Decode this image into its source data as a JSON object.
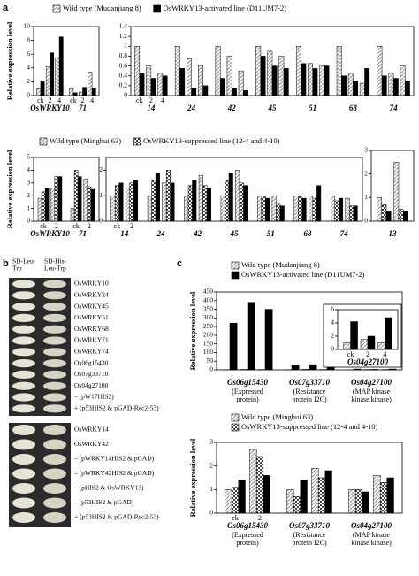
{
  "panel_labels": [
    "a",
    "b",
    "c"
  ],
  "yeast": {
    "headers": [
      [
        "SD-Leu-",
        "Trp"
      ],
      [
        "SD-His-",
        "Leu-Trp"
      ]
    ],
    "top": [
      "OsWRKY10",
      "OsWRKY24",
      "OsWRKY45",
      "OsWRKY51",
      "OsWRKY68",
      "OsWRKY71",
      "OsWRKY74",
      "Os06g15430",
      "Os07g33710",
      "Os04g27100",
      "– (pW17HIS2)",
      "+ (p53HIS2 & pGAD-Rec2-53)"
    ],
    "bottom": [
      "OsWRKY14",
      "OsWRKY42",
      "– (pWRKY14HIS2 & pGAD)",
      "– (pWRKY42HIS2 & pGAD)",
      "– (pHIS2 & OsWRKY13)",
      "– (p53HIS2 & pGAD)",
      "+ (p53HIS2 & pGAD-Rec2-53)"
    ]
  },
  "chart_data": [
    {
      "type": "bar",
      "ylabel": "Relative expression level",
      "genes": [
        "OsWRKY10",
        "71"
      ],
      "categories": [
        "ck",
        "2",
        "4",
        "ck",
        "2",
        "4"
      ],
      "ylim": [
        0,
        10
      ],
      "yticks": [
        0,
        2,
        4,
        6,
        8,
        10
      ],
      "series": [
        {
          "name": "Wild type (Mudanjiang 8)",
          "color": "#9a9a9a",
          "pattern": "hatch",
          "values": [
            1,
            4.2,
            5.5,
            1,
            0.5,
            3.4
          ]
        },
        {
          "name": "OsWRKY13-activated line (D11UM7-2)",
          "color": "#000000",
          "pattern": "solid",
          "values": [
            2,
            6.2,
            8.5,
            0.4,
            1.2,
            1
          ]
        }
      ]
    },
    {
      "type": "bar",
      "genes": [
        "14",
        "24",
        "42",
        "45",
        "51",
        "68",
        "74"
      ],
      "categories": [
        "ck",
        "2",
        "4",
        null,
        null,
        null,
        null,
        null,
        null,
        null,
        null,
        null,
        null,
        null,
        null,
        null,
        null,
        null,
        null,
        null,
        null
      ],
      "ylim": [
        0,
        1.4
      ],
      "yticks": [
        0,
        0.2,
        0.4,
        0.6,
        0.8,
        1,
        1.2,
        1.4
      ],
      "series": [
        {
          "color": "#9a9a9a",
          "pattern": "hatch",
          "values": [
            1.0,
            0.6,
            0.45,
            1.0,
            0.75,
            0.6,
            1.0,
            0.8,
            0.5,
            1.0,
            0.9,
            0.8,
            1.0,
            0.65,
            0.6,
            1.0,
            0.45,
            0.25,
            1.0,
            0.45,
            0.6
          ]
        },
        {
          "color": "#000000",
          "pattern": "solid",
          "values": [
            0.45,
            0.35,
            0.4,
            0.55,
            0.15,
            0.2,
            0.35,
            0.15,
            0.1,
            0.8,
            0.6,
            0.55,
            0.65,
            0.55,
            0.6,
            0.4,
            0.3,
            0.55,
            0.4,
            0.35,
            0.3
          ]
        }
      ]
    },
    {
      "type": "bar",
      "ylabel": "Relative expression level",
      "genes": [
        "OsWRKY10",
        "71"
      ],
      "categories": [
        "ck",
        "2",
        "ck",
        "2"
      ],
      "ylim": [
        0,
        5
      ],
      "yticks": [
        0,
        1,
        2,
        3,
        4,
        5
      ],
      "series": [
        {
          "name": "Wild type (Minghui 63)",
          "color": "#9a9a9a",
          "pattern": "hatch",
          "values": [
            1.8,
            2.6,
            1,
            3.3
          ]
        },
        {
          "name": "OsWRKY13-suppressed line (12-4 and 4-10)",
          "color": "#444444",
          "pattern": "check",
          "values": [
            2.3,
            3.5,
            4,
            2.7
          ]
        },
        {
          "color": "#000000",
          "pattern": "solid",
          "values": [
            2.6,
            3.5,
            3.5,
            2.5
          ]
        }
      ]
    },
    {
      "type": "bar",
      "genes": [
        "14",
        "24",
        "42",
        "45",
        "51",
        "68",
        "74"
      ],
      "categories": [
        "ck",
        "2",
        null,
        null,
        null,
        null,
        null,
        null,
        null,
        null,
        null,
        null,
        null,
        null
      ],
      "ylim": [
        0,
        2.5
      ],
      "yticks": [
        0,
        1,
        2
      ],
      "series": [
        {
          "color": "#9a9a9a",
          "pattern": "hatch",
          "values": [
            1.0,
            1.3,
            1.0,
            1.5,
            1.0,
            1.8,
            1.0,
            2.0,
            1.0,
            1.0,
            1.0,
            1.0,
            1.0,
            0.9
          ]
        },
        {
          "color": "#444444",
          "pattern": "check",
          "values": [
            1.4,
            1.5,
            1.6,
            2.0,
            1.4,
            1.4,
            1.6,
            1.5,
            1.0,
            0.7,
            1.0,
            0.9,
            0.8,
            0.6
          ]
        },
        {
          "color": "#000000",
          "pattern": "solid",
          "values": [
            1.5,
            1.6,
            1.9,
            1.5,
            1.6,
            1.3,
            1.9,
            1.4,
            0.9,
            0.6,
            0.9,
            1.4,
            0.9,
            0.6
          ]
        }
      ]
    },
    {
      "type": "bar",
      "genes": [
        "13"
      ],
      "categories": [
        null,
        null
      ],
      "ylim": [
        0,
        3
      ],
      "yticks": [
        0,
        1,
        2,
        3
      ],
      "series": [
        {
          "color": "#9a9a9a",
          "pattern": "hatch",
          "values": [
            1,
            2.5
          ]
        },
        {
          "color": "#444444",
          "pattern": "check",
          "values": [
            0.7,
            0.5
          ]
        },
        {
          "color": "#000000",
          "pattern": "solid",
          "values": [
            0.4,
            0.4
          ]
        }
      ]
    },
    {
      "type": "bar",
      "ylabel": "Relative expression level",
      "genes": [
        "Os06g15430",
        "Os07g33710",
        "Os04g27100"
      ],
      "gene_notes": [
        [
          "(Expressed",
          "protein)"
        ],
        [
          "(Resistance",
          "protein I2C)"
        ],
        [
          "(MAP kinase",
          "kinase kinase)"
        ]
      ],
      "categories": [
        null,
        null,
        null,
        null,
        null,
        null,
        null,
        null,
        null
      ],
      "ylim": [
        0,
        450
      ],
      "yticks": [
        0,
        50,
        100,
        150,
        200,
        250,
        300,
        350,
        400,
        450
      ],
      "series": [
        {
          "name": "Wild type (Mudanjiang 8)",
          "color": "#9a9a9a",
          "pattern": "hatch",
          "values": [
            1,
            2.4,
            2,
            1,
            3,
            2,
            1,
            2,
            2
          ]
        },
        {
          "name": "OsWRKY13-activated line (D11UM7-2)",
          "color": "#000000",
          "pattern": "solid",
          "values": [
            270,
            390,
            350,
            25,
            30,
            35,
            5,
            3,
            5
          ]
        }
      ]
    },
    {
      "type": "bar",
      "genes": [
        "Os04g27100"
      ],
      "categories": [
        "ck",
        "2",
        "4"
      ],
      "ylim": [
        0,
        6
      ],
      "yticks": [
        0,
        2,
        4,
        6
      ],
      "series": [
        {
          "color": "#9a9a9a",
          "pattern": "hatch",
          "values": [
            1,
            1.5,
            1
          ]
        },
        {
          "color": "#000000",
          "pattern": "solid",
          "values": [
            4.2,
            2,
            4.8
          ]
        }
      ]
    },
    {
      "type": "bar",
      "ylabel": "Relative expression level",
      "genes": [
        "Os06g15430",
        "Os07g33710",
        "Os04g27100"
      ],
      "gene_notes": [
        [
          "(Expressed",
          "protein)"
        ],
        [
          "(Resistance",
          "protein I2C)"
        ],
        [
          "(MAP kinase",
          "kinase kinase)"
        ]
      ],
      "categories": [
        "ck",
        "2",
        null,
        null,
        null,
        null
      ],
      "ylim": [
        0,
        3
      ],
      "yticks": [
        0,
        1,
        2,
        3
      ],
      "series": [
        {
          "name": "Wild type (Minghui 63)",
          "color": "#9a9a9a",
          "pattern": "hatch",
          "values": [
            1,
            2.7,
            1,
            1.9,
            1,
            1.6
          ]
        },
        {
          "name": "OsWRKY13-suppressed line (12-4 and 4-10)",
          "color": "#444444",
          "pattern": "check",
          "values": [
            1.1,
            2.4,
            0.7,
            1.5,
            1.0,
            1.3
          ]
        },
        {
          "color": "#000000",
          "pattern": "solid",
          "values": [
            1.4,
            1.6,
            1.4,
            1.8,
            0.9,
            1.5
          ]
        }
      ]
    }
  ]
}
